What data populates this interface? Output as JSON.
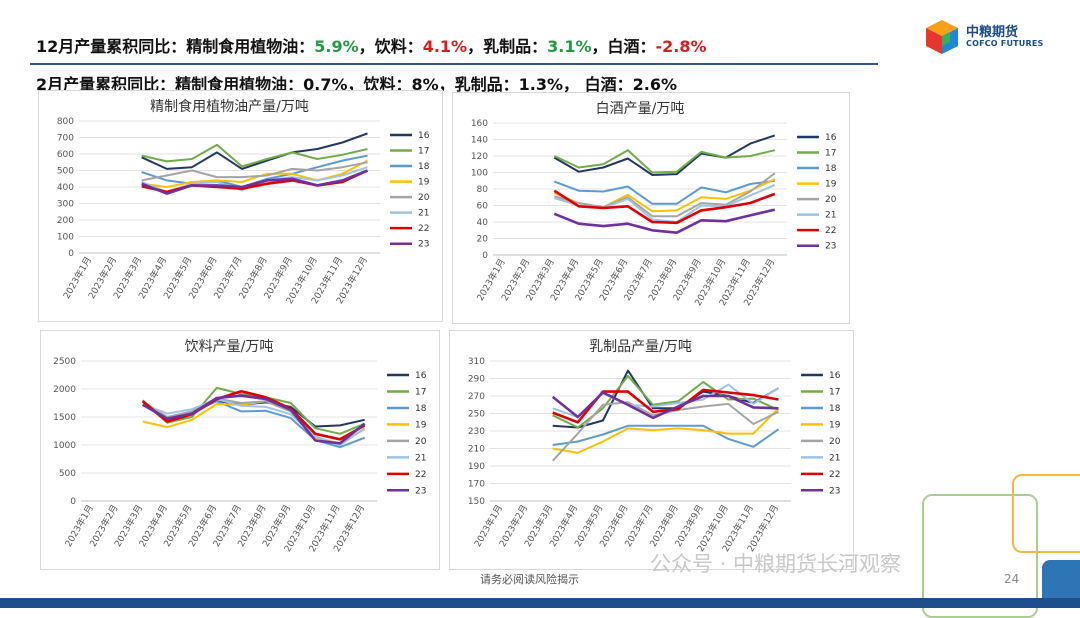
{
  "headline1": {
    "prefix": "12月产量累积同比：",
    "items": [
      {
        "label": "精制食用植物油：",
        "value": "5.9%",
        "color": "#1e9c3e",
        "sep": "，"
      },
      {
        "label": "饮料：",
        "value": "4.1%",
        "color": "#e01919",
        "sep": "，"
      },
      {
        "label": "乳制品：",
        "value": "3.1%",
        "color": "#1e9c3e",
        "sep": "，"
      },
      {
        "label": "白酒：",
        "value": "-2.8%",
        "color": "#e01919",
        "sep": ""
      }
    ]
  },
  "headline2": "2月产量累积同比：精制食用植物油：0.7%，饮料：8%，乳制品：1.3%，  白酒：2.6%",
  "logo": {
    "name": "中粮期货",
    "english": "COFCO FUTURES"
  },
  "footer": {
    "note": "请务必阅读风险揭示",
    "watermark": "公众号 · 中粮期货长河观察",
    "page": "24"
  },
  "colors": {
    "16": "#1f3864",
    "17": "#70ad47",
    "18": "#5b9bd5",
    "19": "#ffc000",
    "20": "#a5a5a5",
    "21": "#9dc3e6",
    "22": "#e00000",
    "23": "#7030a0"
  },
  "chart_data": [
    {
      "type": "line",
      "title": "精制食用植物油产量/万吨",
      "categories": [
        "2023年1月",
        "2023年2月",
        "2023年3月",
        "2023年4月",
        "2023年5月",
        "2023年6月",
        "2023年7月",
        "2023年8月",
        "2023年9月",
        "2023年10月",
        "2023年11月",
        "2023年12月"
      ],
      "ylim": [
        0,
        800
      ],
      "yticks": [
        0,
        100,
        200,
        300,
        400,
        500,
        600,
        700,
        800
      ],
      "legend": "right",
      "series": [
        {
          "name": "16",
          "values": [
            null,
            null,
            580,
            510,
            520,
            610,
            510,
            560,
            610,
            630,
            670,
            725
          ]
        },
        {
          "name": "17",
          "values": [
            null,
            null,
            590,
            555,
            570,
            655,
            525,
            570,
            610,
            570,
            595,
            630
          ]
        },
        {
          "name": "18",
          "values": [
            null,
            null,
            490,
            440,
            420,
            440,
            400,
            450,
            480,
            520,
            560,
            590
          ]
        },
        {
          "name": "19",
          "values": [
            null,
            null,
            420,
            400,
            430,
            440,
            430,
            480,
            480,
            440,
            480,
            560
          ]
        },
        {
          "name": "20",
          "values": [
            null,
            null,
            440,
            470,
            500,
            460,
            460,
            470,
            510,
            500,
            520,
            550
          ]
        },
        {
          "name": "21",
          "values": [
            null,
            null,
            430,
            370,
            420,
            430,
            380,
            440,
            460,
            440,
            470,
            520
          ]
        },
        {
          "name": "22",
          "values": [
            null,
            null,
            405,
            370,
            410,
            400,
            390,
            420,
            440,
            410,
            430,
            500
          ]
        },
        {
          "name": "23",
          "values": [
            null,
            null,
            420,
            360,
            410,
            410,
            400,
            440,
            450,
            410,
            440,
            500
          ]
        }
      ]
    },
    {
      "type": "line",
      "title": "白酒产量/万吨",
      "categories": [
        "2023年1月",
        "2023年2月",
        "2023年3月",
        "2023年4月",
        "2023年5月",
        "2023年6月",
        "2023年7月",
        "2023年8月",
        "2023年9月",
        "2023年10月",
        "2023年11月",
        "2023年12月"
      ],
      "ylim": [
        0,
        160
      ],
      "yticks": [
        0,
        20,
        40,
        60,
        80,
        100,
        120,
        140,
        160
      ],
      "legend": "right",
      "series": [
        {
          "name": "16",
          "values": [
            null,
            null,
            118,
            101,
            106,
            117,
            97,
            98,
            123,
            118,
            135,
            145
          ]
        },
        {
          "name": "17",
          "values": [
            null,
            null,
            120,
            106,
            110,
            127,
            100,
            101,
            125,
            118,
            120,
            127
          ]
        },
        {
          "name": "18",
          "values": [
            null,
            null,
            89,
            78,
            77,
            83,
            62,
            62,
            82,
            76,
            86,
            90
          ]
        },
        {
          "name": "19",
          "values": [
            null,
            null,
            75,
            63,
            58,
            73,
            53,
            54,
            70,
            68,
            78,
            92
          ]
        },
        {
          "name": "20",
          "values": [
            null,
            null,
            71,
            63,
            58,
            70,
            47,
            47,
            63,
            61,
            77,
            99
          ]
        },
        {
          "name": "21",
          "values": [
            null,
            null,
            69,
            60,
            57,
            68,
            43,
            40,
            60,
            59,
            72,
            85
          ]
        },
        {
          "name": "22",
          "values": [
            null,
            null,
            78,
            59,
            57,
            59,
            40,
            39,
            54,
            58,
            63,
            74
          ]
        },
        {
          "name": "23",
          "values": [
            null,
            null,
            50,
            38,
            35,
            38,
            30,
            27,
            42,
            41,
            48,
            55
          ]
        }
      ]
    },
    {
      "type": "line",
      "title": "饮料产量/万吨",
      "categories": [
        "2023年1月",
        "2023年2月",
        "2023年3月",
        "2023年4月",
        "2023年5月",
        "2023年6月",
        "2023年7月",
        "2023年8月",
        "2023年9月",
        "2023年10月",
        "2023年11月",
        "2023年12月"
      ],
      "ylim": [
        0,
        2500
      ],
      "yticks": [
        0,
        500,
        1000,
        1500,
        2000,
        2500
      ],
      "legend": "right",
      "series": [
        {
          "name": "16",
          "values": [
            null,
            null,
            1780,
            1400,
            1580,
            1790,
            1720,
            1760,
            1680,
            1330,
            1350,
            1450
          ]
        },
        {
          "name": "17",
          "values": [
            null,
            null,
            1800,
            1400,
            1500,
            2020,
            1910,
            1850,
            1750,
            1300,
            1200,
            1380
          ]
        },
        {
          "name": "18",
          "values": [
            null,
            null,
            1780,
            1450,
            1590,
            1780,
            1600,
            1610,
            1480,
            1090,
            960,
            1130
          ]
        },
        {
          "name": "19",
          "values": [
            null,
            null,
            1420,
            1320,
            1450,
            1730,
            1720,
            1780,
            1600,
            1130,
            1030,
            1280
          ]
        },
        {
          "name": "20",
          "values": [
            null,
            null,
            1780,
            1500,
            1600,
            1830,
            1750,
            1780,
            1600,
            1200,
            1110,
            1350
          ]
        },
        {
          "name": "21",
          "values": [
            null,
            null,
            1730,
            1560,
            1640,
            1820,
            1700,
            1680,
            1550,
            1150,
            1000,
            1300
          ]
        },
        {
          "name": "22",
          "values": [
            null,
            null,
            1780,
            1420,
            1550,
            1820,
            1960,
            1850,
            1650,
            1200,
            1100,
            1350
          ]
        },
        {
          "name": "23",
          "values": [
            null,
            null,
            1720,
            1470,
            1560,
            1840,
            1880,
            1820,
            1630,
            1080,
            1030,
            1380
          ]
        }
      ]
    },
    {
      "type": "line",
      "title": "乳制品产量/万吨",
      "categories": [
        "2023年1月",
        "2023年2月",
        "2023年3月",
        "2023年4月",
        "2023年5月",
        "2023年6月",
        "2023年7月",
        "2023年8月",
        "2023年9月",
        "2023年10月",
        "2023年11月",
        "2023年12月"
      ],
      "ylim": [
        150,
        310
      ],
      "yticks": [
        150,
        170,
        190,
        210,
        230,
        250,
        270,
        290,
        310
      ],
      "legend": "right",
      "series": [
        {
          "name": "16",
          "values": [
            null,
            null,
            236,
            234,
            242,
            299,
            256,
            256,
            275,
            270,
            262,
            279
          ]
        },
        {
          "name": "17",
          "values": [
            null,
            null,
            248,
            234,
            256,
            293,
            260,
            264,
            286,
            266,
            267,
            254
          ]
        },
        {
          "name": "18",
          "values": [
            null,
            null,
            214,
            218,
            226,
            236,
            236,
            236,
            236,
            221,
            212,
            232
          ]
        },
        {
          "name": "19",
          "values": [
            null,
            null,
            210,
            205,
            218,
            233,
            231,
            233,
            231,
            227,
            227,
            256
          ]
        },
        {
          "name": "20",
          "values": [
            null,
            null,
            196,
            227,
            260,
            263,
            248,
            254,
            258,
            261,
            238,
            252
          ]
        },
        {
          "name": "21",
          "values": [
            null,
            null,
            256,
            246,
            273,
            260,
            258,
            262,
            266,
            283,
            261,
            279
          ]
        },
        {
          "name": "22",
          "values": [
            null,
            null,
            251,
            240,
            275,
            275,
            252,
            255,
            277,
            274,
            271,
            266
          ]
        },
        {
          "name": "23",
          "values": [
            null,
            null,
            269,
            246,
            274,
            260,
            245,
            258,
            270,
            270,
            257,
            256
          ]
        }
      ]
    }
  ]
}
